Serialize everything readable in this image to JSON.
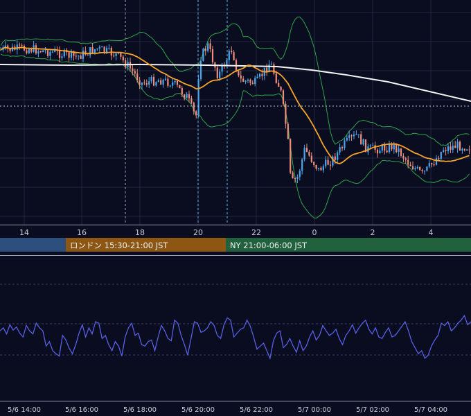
{
  "chart_data": [
    {
      "type": "candlestick",
      "x_axis_ticks": [
        "14",
        "16",
        "18",
        "20",
        "22",
        "0",
        "2",
        "4"
      ],
      "x_axis_range": [
        13,
        5.4
      ],
      "y_axis_range": [
        0,
        1
      ],
      "grid": true,
      "colors": {
        "background": "#0a0c1f",
        "grid": "#232740",
        "candle_up": "#4aa8f0",
        "candle_down": "#f08e7c",
        "sma_short": "#f7a42c",
        "sma_long": "#f4f4f4",
        "bollinger": "#2fa64a",
        "session_marker": "#5bbcf0",
        "price_marker": "#c8ccd8"
      },
      "series": [],
      "sessions": [
        {
          "label": "",
          "color": "#2c4f7e"
        },
        {
          "label": "ロンドン 15:30-21:00 JST",
          "color": "#8d5713"
        },
        {
          "label": "NY 21:00-06:00 JST",
          "color": "#22613e"
        }
      ]
    },
    {
      "type": "line",
      "x_axis_ticks": [
        "5/6 14:00",
        "5/6 16:00",
        "5/6 18:00",
        "5/6 20:00",
        "5/6 22:00",
        "5/7 00:00",
        "5/7 02:00",
        "5/7 04:00"
      ],
      "grid": true,
      "colors": {
        "line": "#5860e6",
        "grid_dashed": "#3a3f5e",
        "axis_line": "#9aa0b5"
      },
      "series": [
        {
          "values": [
            48,
            52,
            44,
            56,
            49,
            53,
            45,
            40,
            55,
            48,
            44,
            58,
            52,
            48,
            28,
            34,
            22,
            18,
            15,
            42,
            36,
            25,
            18,
            30,
            45,
            56,
            40,
            52,
            44,
            60,
            58,
            38,
            42,
            30,
            22,
            34,
            28,
            15,
            40,
            52,
            58,
            42,
            45,
            30,
            28,
            34,
            36,
            22,
            40,
            55,
            48,
            38,
            35,
            62,
            58,
            42,
            30,
            16,
            38,
            60,
            58,
            46,
            48,
            52,
            60,
            55,
            42,
            38,
            56,
            65,
            62,
            40,
            45,
            50,
            52,
            62,
            54,
            40,
            24,
            28,
            32,
            22,
            12,
            35,
            45,
            48,
            26,
            30,
            38,
            28,
            20,
            35,
            22,
            28,
            40,
            48,
            36,
            42,
            55,
            48,
            42,
            45,
            50,
            38,
            30,
            42,
            48,
            56,
            45,
            52,
            58,
            62,
            50,
            44,
            52,
            40,
            38,
            46,
            52,
            40,
            42,
            48,
            54,
            60,
            48,
            34,
            26,
            18,
            22,
            12,
            16,
            28,
            36,
            42,
            58,
            55,
            60,
            48,
            52,
            58,
            62,
            68,
            56,
            60
          ],
          "ylim": [
            0,
            100
          ]
        }
      ]
    }
  ]
}
